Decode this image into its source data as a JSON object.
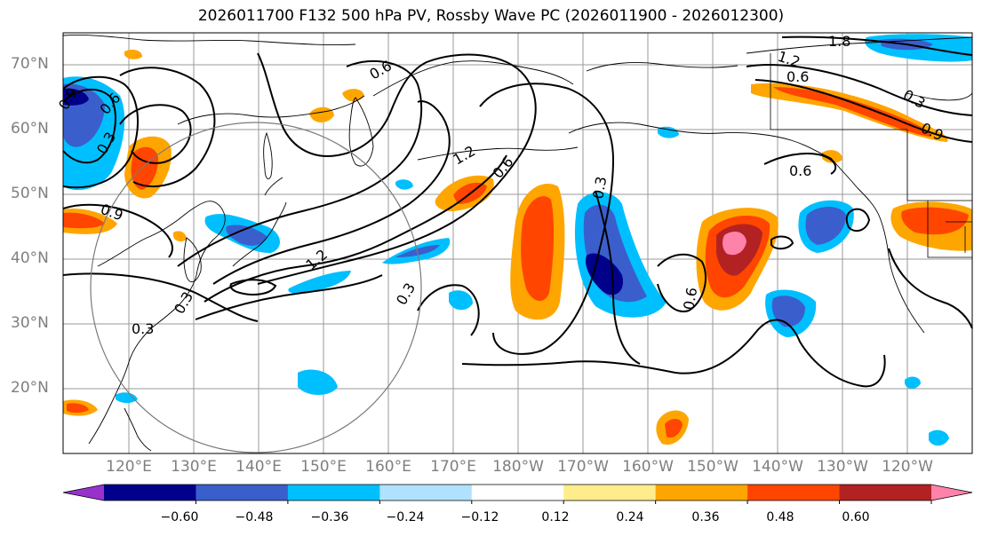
{
  "title": "2026011700 F132 500 hPa PV, Rossby Wave PC (2026011900 - 2026012300)",
  "lat_labels": [
    "70°N",
    "60°N",
    "50°N",
    "40°N",
    "30°N",
    "20°N"
  ],
  "lon_labels": [
    "120°E",
    "130°E",
    "140°E",
    "150°E",
    "160°E",
    "170°E",
    "180°W",
    "170°W",
    "160°W",
    "150°W",
    "140°W",
    "130°W",
    "120°W"
  ],
  "contour_labels": [
    "1.8",
    "1.2",
    "0.6",
    "0.6",
    "0.3",
    "0.9",
    "0.6",
    "0.3",
    "0.9",
    "1.2",
    "0.6",
    "1.2",
    "0.3",
    "0.3",
    "0.3",
    "0.6",
    "0.6",
    "0.9",
    "0.3"
  ],
  "colorbar": {
    "ticks": [
      "−0.60",
      "−0.48",
      "−0.36",
      "−0.24",
      "−0.12",
      "0.12",
      "0.24",
      "0.36",
      "0.48",
      "0.60"
    ],
    "colors": [
      "#9932cc",
      "#00008b",
      "#3a5fcd",
      "#00bfff",
      "#b0e2ff",
      "#ffffff",
      "#ffec8b",
      "#ffa500",
      "#ff4500",
      "#b22222",
      "#ff82ab"
    ]
  }
}
